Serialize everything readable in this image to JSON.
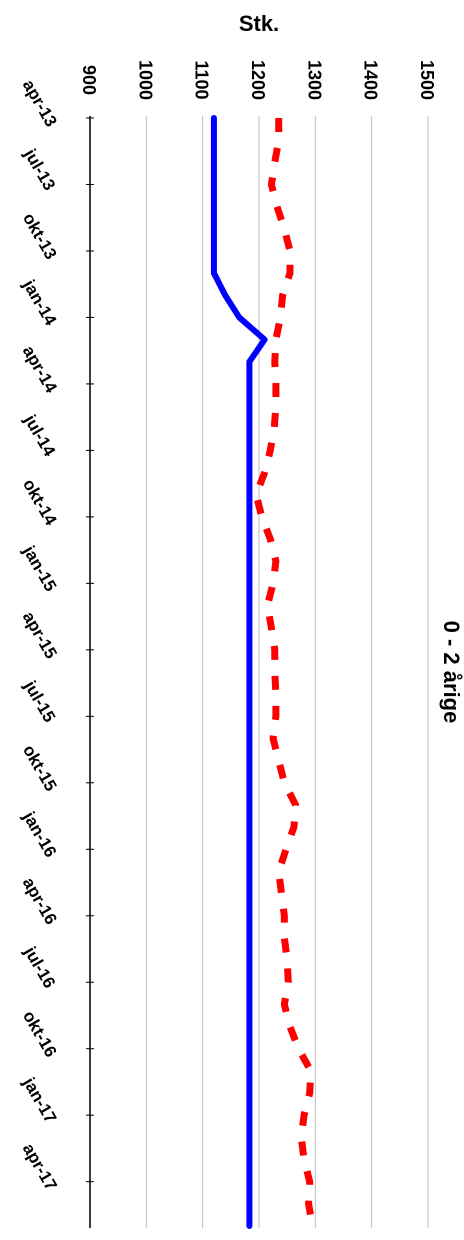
{
  "chart_data": {
    "type": "line",
    "title": "0 - 2 årige",
    "ylabel": "Stk.",
    "xlabel": "",
    "ylim": [
      900,
      1500
    ],
    "y_ticks": [
      900,
      1000,
      1100,
      1200,
      1300,
      1400,
      1500
    ],
    "x_tick_labels": [
      "apr-13",
      "jul-13",
      "okt-13",
      "jan-14",
      "apr-14",
      "jul-14",
      "okt-14",
      "jan-15",
      "apr-15",
      "jul-15",
      "okt-15",
      "jan-16",
      "apr-16",
      "jul-16",
      "okt-16",
      "jan-17",
      "apr-17"
    ],
    "x": [
      "apr-13",
      "maj-13",
      "jun-13",
      "jul-13",
      "aug-13",
      "sep-13",
      "okt-13",
      "nov-13",
      "dec-13",
      "jan-14",
      "feb-14",
      "mar-14",
      "apr-14",
      "maj-14",
      "jun-14",
      "jul-14",
      "aug-14",
      "sep-14",
      "okt-14",
      "nov-14",
      "dec-14",
      "jan-15",
      "feb-15",
      "mar-15",
      "apr-15",
      "maj-15",
      "jun-15",
      "jul-15",
      "aug-15",
      "sep-15",
      "okt-15",
      "nov-15",
      "dec-15",
      "jan-16",
      "feb-16",
      "mar-16",
      "apr-16",
      "maj-16",
      "jun-16",
      "jul-16",
      "aug-16",
      "sep-16",
      "okt-16",
      "nov-16",
      "dec-16",
      "jan-17",
      "feb-17",
      "mar-17",
      "apr-17",
      "maj-17",
      "jun-17"
    ],
    "grid": true,
    "series": [
      {
        "color": "#0000ff",
        "style": "solid",
        "values": [
          1120,
          1120,
          1120,
          1120,
          1120,
          1120,
          1120,
          1120,
          1140,
          1165,
          1210,
          1183,
          1183,
          1183,
          1183,
          1183,
          1183,
          1183,
          1183,
          1183,
          1183,
          1183,
          1183,
          1183,
          1183,
          1183,
          1183,
          1183,
          1183,
          1183,
          1183,
          1183,
          1183,
          1183,
          1183,
          1183,
          1183,
          1183,
          1183,
          1183,
          1183,
          1183,
          1183,
          1183,
          1183,
          1183,
          1183,
          1183,
          1183,
          1183,
          1183
        ]
      },
      {
        "color": "#ff0000",
        "style": "dashed",
        "values": [
          1235,
          1235,
          1228,
          1222,
          1232,
          1245,
          1255,
          1255,
          1242,
          1238,
          1230,
          1228,
          1230,
          1230,
          1227,
          1220,
          1210,
          1195,
          1205,
          1220,
          1230,
          1225,
          1215,
          1222,
          1228,
          1228,
          1230,
          1230,
          1225,
          1235,
          1245,
          1265,
          1262,
          1248,
          1235,
          1240,
          1245,
          1245,
          1250,
          1252,
          1245,
          1255,
          1270,
          1292,
          1290,
          1280,
          1275,
          1280,
          1290,
          1288,
          1295
        ]
      }
    ]
  }
}
